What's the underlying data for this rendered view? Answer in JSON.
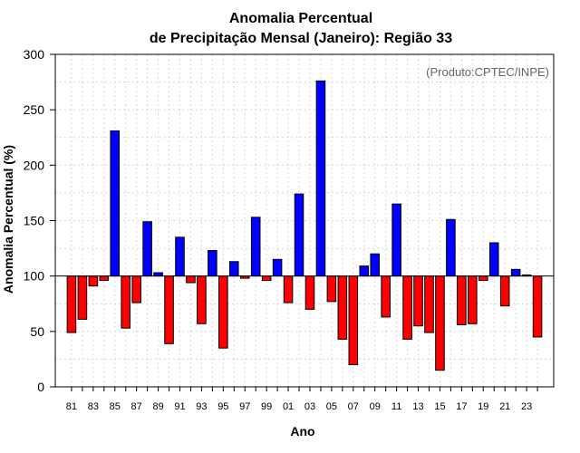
{
  "chart_data": {
    "type": "bar",
    "title_line1": "Anomalia Percentual",
    "title_line2": "de Precipitação Mensal (Janeiro): Região 33",
    "xlabel": "Ano",
    "ylabel": "Anomalia Percentual (%)",
    "annotation": "(Produto:CPTEC/INPE)",
    "baseline": 100,
    "ylim": [
      0,
      300
    ],
    "yticks": [
      "0",
      "50",
      "100",
      "150",
      "200",
      "250",
      "300"
    ],
    "years": [
      1981,
      1982,
      1983,
      1984,
      1985,
      1986,
      1987,
      1988,
      1989,
      1990,
      1991,
      1992,
      1993,
      1994,
      1995,
      1996,
      1997,
      1998,
      1999,
      2000,
      2001,
      2002,
      2003,
      2004,
      2005,
      2006,
      2007,
      2008,
      2009,
      2010,
      2011,
      2012,
      2013,
      2014,
      2015,
      2016,
      2017,
      2018,
      2019,
      2020,
      2021,
      2022,
      2023,
      2024
    ],
    "xtick_labels": [
      "81",
      "83",
      "85",
      "87",
      "89",
      "91",
      "93",
      "95",
      "97",
      "99",
      "01",
      "03",
      "05",
      "07",
      "09",
      "11",
      "13",
      "15",
      "17",
      "19",
      "21",
      "23"
    ],
    "values": [
      49,
      61,
      91,
      96,
      231,
      53,
      76,
      149,
      103,
      39,
      135,
      94,
      57,
      123,
      35,
      113,
      98,
      153,
      96,
      115,
      76,
      174,
      70,
      276,
      77,
      43,
      20,
      109,
      120,
      63,
      165,
      43,
      55,
      49,
      15,
      151,
      56,
      57,
      96,
      130,
      73,
      106,
      101,
      45
    ],
    "above_color": "#0000ff",
    "below_color": "#ff0000"
  }
}
